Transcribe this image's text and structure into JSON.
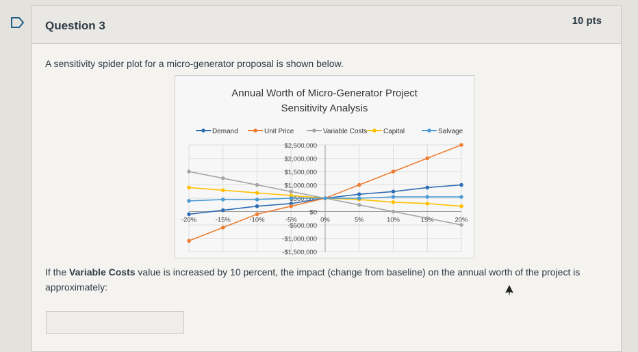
{
  "question": {
    "title": "Question 3",
    "points": "10 pts",
    "text": "A sensitivity spider plot for a micro-generator proposal is shown below.",
    "followup_before": "If the ",
    "followup_bold": "Variable Costs",
    "followup_after": " value is increased by 10 percent, the impact (change from baseline) on the annual worth of the project is approximately:",
    "answer_value": ""
  },
  "icons": {
    "flag": "flag-icon",
    "cursor": "mouse-cursor-icon"
  },
  "chart_data": {
    "type": "line",
    "title": "Annual Worth of Micro-Generator Project",
    "subtitle": "Sensitivity Analysis",
    "xlabel": "",
    "ylabel": "",
    "x": [
      -20,
      -15,
      -10,
      -5,
      0,
      5,
      10,
      15,
      20
    ],
    "x_tick_labels": [
      "-20%",
      "-15%",
      "-10%",
      "-5%",
      "0%",
      "5%",
      "10%",
      "15%",
      "20%"
    ],
    "ylim": [
      -1500000,
      2500000
    ],
    "y_ticks": [
      2500000,
      2000000,
      1500000,
      1000000,
      500000,
      0,
      -500000,
      -1000000,
      -1500000
    ],
    "y_tick_labels": [
      "$2,500,000",
      "$2,000,000",
      "$1,500,000",
      "$1,000,000",
      "$500,000",
      "$0",
      "-$500,000",
      "-$1,000,000",
      "-$1,500,000"
    ],
    "grid": true,
    "legend_position": "top",
    "series": [
      {
        "name": "Demand",
        "color": "#2e6db4",
        "values": [
          -100000,
          50000,
          200000,
          300000,
          500000,
          650000,
          750000,
          900000,
          1000000
        ]
      },
      {
        "name": "Unit Price",
        "color": "#ed7d31",
        "values": [
          -1100000,
          -600000,
          -100000,
          200000,
          500000,
          1000000,
          1500000,
          2000000,
          2500000
        ]
      },
      {
        "name": "Variable Costs",
        "color": "#a5a5a5",
        "values": [
          1500000,
          1250000,
          1000000,
          750000,
          500000,
          250000,
          0,
          -250000,
          -500000
        ]
      },
      {
        "name": "Capital",
        "color": "#ffc000",
        "values": [
          900000,
          800000,
          700000,
          600000,
          500000,
          450000,
          350000,
          300000,
          200000
        ]
      },
      {
        "name": "Salvage",
        "color": "#4a9bd4",
        "values": [
          400000,
          450000,
          450000,
          500000,
          500000,
          500000,
          550000,
          550000,
          550000
        ]
      }
    ]
  }
}
